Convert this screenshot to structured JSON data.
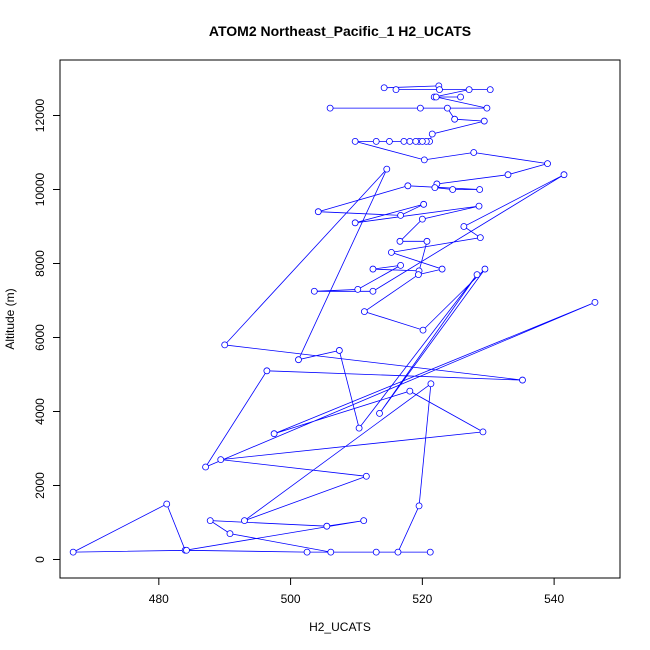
{
  "chart_data": {
    "type": "line",
    "title": "ATOM2 Northeast_Pacific_1 H2_UCATS",
    "xlabel": "H2_UCATS",
    "ylabel": "Altitude (m)",
    "xlim": [
      465,
      550
    ],
    "ylim": [
      -500,
      13500
    ],
    "xticks": [
      480,
      500,
      520,
      540
    ],
    "yticks": [
      0,
      2000,
      4000,
      6000,
      8000,
      10000,
      12000
    ],
    "grid": false,
    "line_color": "#0000ff",
    "marker": "open-circle",
    "series": [
      {
        "x": [
          514.2,
          522.5,
          522.6,
          516.0,
          530.3,
          527.1,
          521.8,
          525.8,
          522.1,
          529.8,
          506.0,
          519.7,
          523.8,
          524.9,
          529.4,
          521.5,
          521.1,
          518.1,
          520.6,
          519.5,
          520.0,
          517.2,
          519.0,
          513.0,
          515.0,
          509.8,
          520.3,
          527.8,
          539.0,
          533.0,
          522.2,
          521.9,
          524.6,
          528.7,
          517.8,
          504.2,
          516.7,
          520.2,
          509.8,
          528.6,
          520.0,
          516.6,
          520.7,
          519.5,
          512.5,
          516.7,
          510.2,
          503.6,
          512.5,
          541.5,
          526.3,
          528.8,
          515.3,
          523.0,
          519.4,
          511.2,
          520.1,
          529.5,
          513.5,
          528.3,
          510.4,
          507.4,
          501.2,
          514.6,
          490.0,
          535.2,
          496.4,
          487.1,
          546.2,
          497.5,
          518.1,
          529.2,
          489.4,
          511.5,
          493.0,
          521.3,
          519.5,
          516.3,
          521.2,
          506.1,
          490.8,
          487.8,
          505.5,
          511.1,
          484.0,
          481.2,
          467.0,
          484.2,
          502.5,
          513.0
        ],
        "y": [
          12750,
          12800,
          12700,
          12700,
          12700,
          12700,
          12500,
          12500,
          12500,
          12200,
          12200,
          12200,
          12200,
          11900,
          11850,
          11500,
          11300,
          11300,
          11300,
          11300,
          11300,
          11300,
          11300,
          11300,
          11300,
          11300,
          10800,
          11000,
          10700,
          10400,
          10150,
          10050,
          10000,
          10000,
          10100,
          9400,
          9300,
          9600,
          9100,
          9550,
          9200,
          8600,
          8600,
          7800,
          7850,
          7950,
          7300,
          7250,
          7250,
          10400,
          9000,
          8700,
          8300,
          7850,
          7700,
          6700,
          6200,
          7850,
          3950,
          7700,
          3550,
          5650,
          5400,
          10550,
          5800,
          4850,
          5100,
          2500,
          6950,
          3400,
          4550,
          3450,
          2700,
          2250,
          1050,
          4750,
          1450,
          200,
          200,
          200,
          700,
          1050,
          900,
          1050,
          250,
          1500,
          200,
          250,
          200,
          200
        ]
      }
    ]
  }
}
